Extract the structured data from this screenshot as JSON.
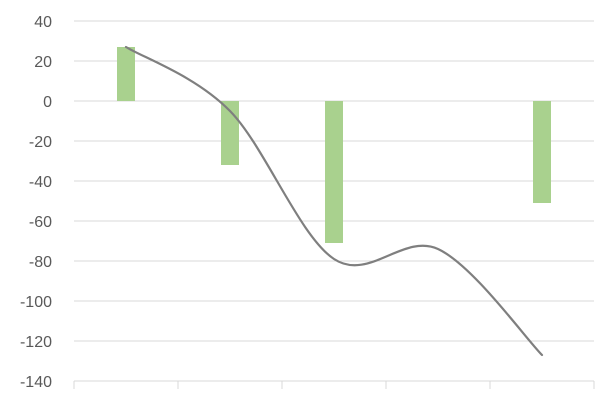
{
  "chart_data": {
    "type": "bar",
    "title": "",
    "xlabel": "",
    "ylabel": "",
    "ylim": [
      -140,
      40
    ],
    "ytick_step": 20,
    "grid": true,
    "categories": [
      "",
      "",
      "",
      "",
      ""
    ],
    "series": [
      {
        "type": "bar",
        "values": [
          27,
          -32,
          -71,
          null,
          -51
        ],
        "color": "#a9d18e"
      },
      {
        "type": "line",
        "smooth": true,
        "values": [
          27,
          -5,
          -79,
          -74,
          -127
        ],
        "color": "#7f7f7f"
      }
    ]
  }
}
